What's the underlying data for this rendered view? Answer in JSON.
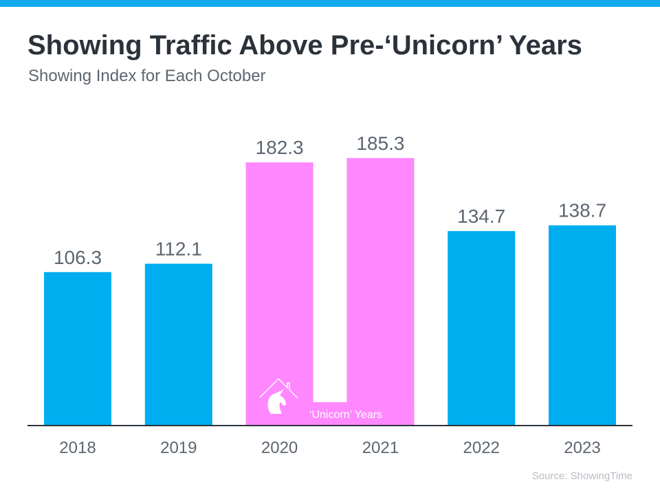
{
  "title": "Showing Traffic Above Pre-‘Unicorn’ Years",
  "subtitle": "Showing Index for Each October",
  "source": "Source: ShowingTime",
  "colors": {
    "top_bar": "#13a9ed",
    "normal_bar": "#00aeef",
    "unicorn_bar": "#ff88ff",
    "text": "#5d6670",
    "axis": "#2b323a"
  },
  "chart_data": {
    "type": "bar",
    "title": "Showing Traffic Above Pre-‘Unicorn’ Years",
    "subtitle": "Showing Index for Each October",
    "categories": [
      "2018",
      "2019",
      "2020",
      "2021",
      "2022",
      "2023"
    ],
    "values": [
      106.3,
      112.1,
      182.3,
      185.3,
      134.7,
      138.7
    ],
    "highlighted": [
      false,
      false,
      true,
      true,
      false,
      false
    ],
    "data_labels": [
      "106.3",
      "112.1",
      "182.3",
      "185.3",
      "134.7",
      "138.7"
    ],
    "annotation": {
      "label": "‘Unicorn’ Years",
      "icon": "unicorn-house-icon",
      "spans": [
        "2020",
        "2021"
      ]
    },
    "xlabel": "",
    "ylabel": "",
    "ylim": [
      0,
      200
    ],
    "grid": false,
    "legend": "none"
  }
}
